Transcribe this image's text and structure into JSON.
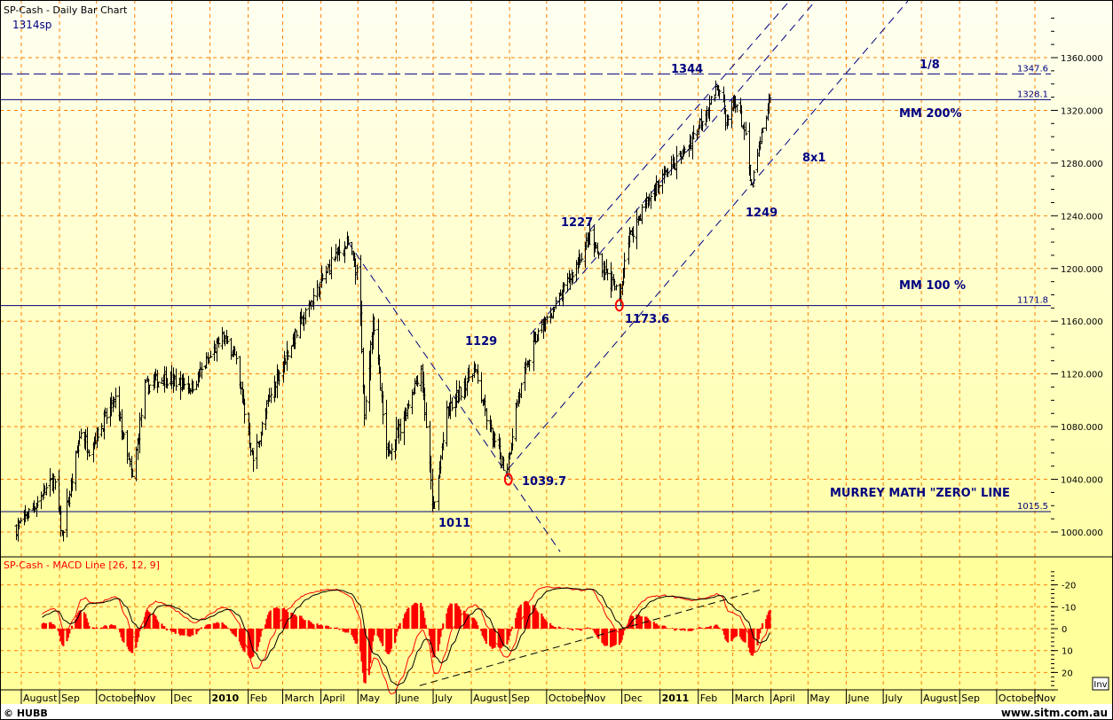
{
  "header": {
    "title": "SP-Cash - Daily Bar Chart",
    "symbol_note": "1314sp"
  },
  "footer": {
    "copyright": "© HUBB",
    "website": "www.sitm.com.au"
  },
  "inv_button": "Inv",
  "colors": {
    "bars": "#000000",
    "annotation": "#000080",
    "grid": "#ff8000",
    "macd": "#ff0000",
    "signal": "#000000",
    "histogram": "#ff0000",
    "background_top": "#fffff2",
    "background_bottom": "#ffffa0",
    "marker": "#ff0000"
  },
  "chart_data": [
    {
      "type": "ohlc-bar",
      "title": "SP-Cash - Daily Bar Chart",
      "y_ticks": [
        "1000.000",
        "1040.000",
        "1080.000",
        "1120.000",
        "1160.000",
        "1200.000",
        "1240.000",
        "1280.000",
        "1320.000",
        "1360.000"
      ],
      "ylim": [
        980,
        1395
      ],
      "xlim": [
        "2009-07-15",
        "2011-11-10"
      ],
      "grid": true,
      "x_tick_labels": [
        {
          "date": "2009-08-01",
          "label": "August"
        },
        {
          "date": "2009-09-01",
          "label": "Sep"
        },
        {
          "date": "2009-10-01",
          "label": "October"
        },
        {
          "date": "2009-11-01",
          "label": "Nov"
        },
        {
          "date": "2009-12-01",
          "label": "Dec"
        },
        {
          "date": "2010-01-01",
          "label": "2010",
          "bold": true
        },
        {
          "date": "2010-02-01",
          "label": "Feb"
        },
        {
          "date": "2010-03-01",
          "label": "March"
        },
        {
          "date": "2010-04-01",
          "label": "April"
        },
        {
          "date": "2010-05-01",
          "label": "May"
        },
        {
          "date": "2010-06-01",
          "label": "June"
        },
        {
          "date": "2010-07-01",
          "label": "July"
        },
        {
          "date": "2010-08-01",
          "label": "August"
        },
        {
          "date": "2010-09-01",
          "label": "Sep"
        },
        {
          "date": "2010-10-01",
          "label": "October"
        },
        {
          "date": "2010-11-01",
          "label": "Nov"
        },
        {
          "date": "2010-12-01",
          "label": "Dec"
        },
        {
          "date": "2011-01-01",
          "label": "2011",
          "bold": true
        },
        {
          "date": "2011-02-01",
          "label": "Feb"
        },
        {
          "date": "2011-03-01",
          "label": "March"
        },
        {
          "date": "2011-04-01",
          "label": "April"
        },
        {
          "date": "2011-05-01",
          "label": "May"
        },
        {
          "date": "2011-06-01",
          "label": "June"
        },
        {
          "date": "2011-07-01",
          "label": "July"
        },
        {
          "date": "2011-08-01",
          "label": "August"
        },
        {
          "date": "2011-09-01",
          "label": "Sep"
        },
        {
          "date": "2011-10-01",
          "label": "October"
        },
        {
          "date": "2011-11-01",
          "label": "Nov"
        }
      ],
      "price_path": [
        [
          "2009-07-28",
          1003
        ],
        [
          "2009-08-09",
          1017
        ],
        [
          "2009-08-27",
          1040
        ],
        [
          "2009-09-03",
          998
        ],
        [
          "2009-09-18",
          1077
        ],
        [
          "2009-09-25",
          1063
        ],
        [
          "2009-10-16",
          1100
        ],
        [
          "2009-10-30",
          1040
        ],
        [
          "2009-11-09",
          1110
        ],
        [
          "2009-11-25",
          1117
        ],
        [
          "2009-12-17",
          1110
        ],
        [
          "2010-01-11",
          1148
        ],
        [
          "2010-01-20",
          1137
        ],
        [
          "2010-02-05",
          1055
        ],
        [
          "2010-02-20",
          1108
        ],
        [
          "2010-03-05",
          1137
        ],
        [
          "2010-03-24",
          1175
        ],
        [
          "2010-04-12",
          1210
        ],
        [
          "2010-04-23",
          1218
        ],
        [
          "2010-05-02",
          1190
        ],
        [
          "2010-05-06",
          1085
        ],
        [
          "2010-05-13",
          1165
        ],
        [
          "2010-05-24",
          1060
        ],
        [
          "2010-06-04",
          1080
        ],
        [
          "2010-06-21",
          1125
        ],
        [
          "2010-07-01",
          1014
        ],
        [
          "2010-07-12",
          1090
        ],
        [
          "2010-08-03",
          1125
        ],
        [
          "2010-08-14",
          1083
        ],
        [
          "2010-08-29",
          1045
        ],
        [
          "2010-09-07",
          1100
        ],
        [
          "2010-09-21",
          1145
        ],
        [
          "2010-10-13",
          1180
        ],
        [
          "2010-11-05",
          1224
        ],
        [
          "2010-11-18",
          1197
        ],
        [
          "2010-11-29",
          1178
        ],
        [
          "2010-12-04",
          1217
        ],
        [
          "2010-12-19",
          1248
        ],
        [
          "2011-01-02",
          1268
        ],
        [
          "2011-01-24",
          1293
        ],
        [
          "2011-02-08",
          1322
        ],
        [
          "2011-02-19",
          1340
        ],
        [
          "2011-02-23",
          1308
        ],
        [
          "2011-03-03",
          1328
        ],
        [
          "2011-03-10",
          1305
        ],
        [
          "2011-03-16",
          1260
        ],
        [
          "2011-03-24",
          1300
        ],
        [
          "2011-03-31",
          1328
        ]
      ],
      "horizontal_levels": [
        {
          "value": 1347.6,
          "label": "1347.6",
          "style": "dashed"
        },
        {
          "value": 1328.1,
          "label": "1328.1",
          "style": "solid"
        },
        {
          "value": 1171.8,
          "label": "1171.8",
          "style": "solid"
        },
        {
          "value": 1015.5,
          "label": "1015.5",
          "style": "solid"
        }
      ],
      "trendlines": [
        {
          "from": [
            "2010-04-23",
            1220
          ],
          "to": [
            "2010-10-12",
            985
          ]
        },
        {
          "from": [
            "2010-08-31",
            1048
          ],
          "to": [
            "2011-07-21",
            1403
          ]
        },
        {
          "from": [
            "2010-09-18",
            1150
          ],
          "to": [
            "2011-05-07",
            1403
          ]
        },
        {
          "from": [
            "2010-11-05",
            1229
          ],
          "to": [
            "2011-04-16",
            1403
          ]
        }
      ],
      "markers": [
        [
          "2010-08-31",
          1040
        ],
        [
          "2010-11-29",
          1172
        ]
      ],
      "annotations": {
        "high_1344": "1344",
        "high_1227": "1227",
        "high_1129": "1129",
        "low_1173": "1173.6",
        "low_1039": "1039.7",
        "low_1011": "1011",
        "low_1249": "1249",
        "gann": "8x1",
        "eighth": "1/8",
        "mm200": "MM 200%",
        "mm100": "MM 100 %",
        "zero_line": "MURREY MATH \"ZERO\" LINE"
      }
    },
    {
      "type": "line+histogram",
      "title": "SP-Cash - MACD Line [26, 12, 9]",
      "params": [
        26,
        12,
        9
      ],
      "inverted_axis": true,
      "y_ticks": [
        "-20",
        "-10",
        "0",
        "10",
        "20"
      ],
      "series": [
        {
          "name": "MACD Line"
        },
        {
          "name": "Signal"
        },
        {
          "name": "Histogram"
        }
      ]
    }
  ]
}
